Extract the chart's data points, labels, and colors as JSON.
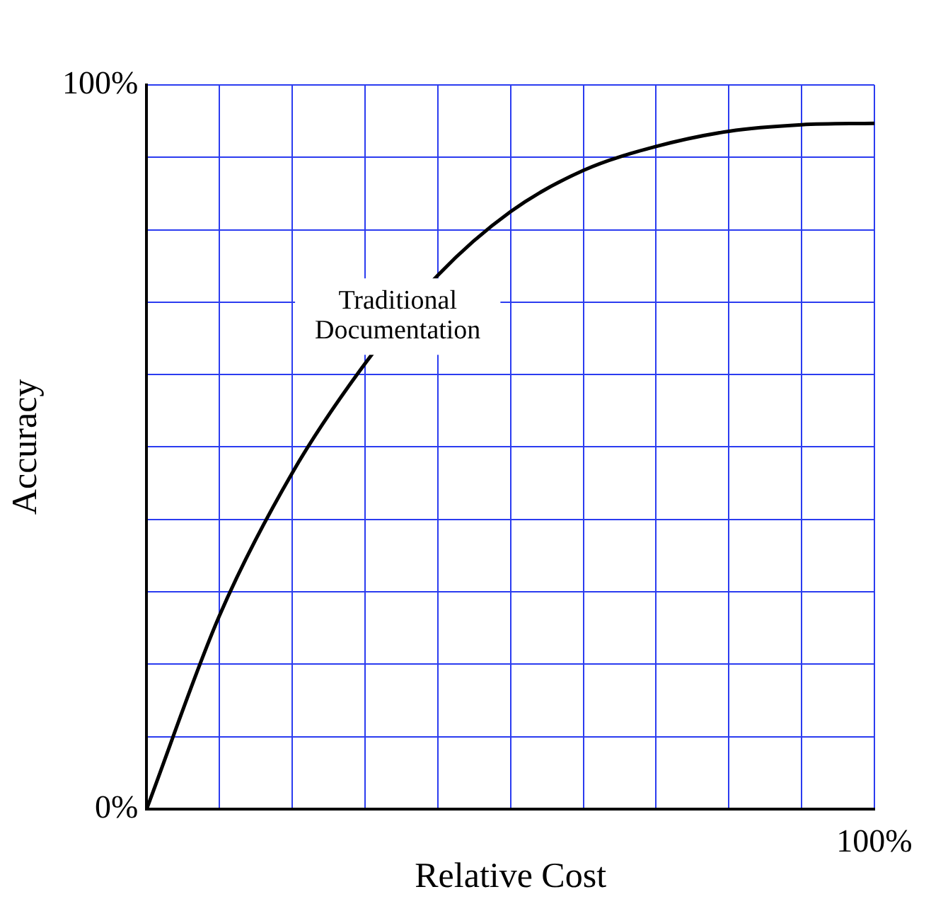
{
  "chart_data": {
    "type": "line",
    "xlabel": "Relative Cost",
    "ylabel": "Accuracy",
    "categories": [
      null,
      null,
      null,
      null,
      null,
      null,
      null,
      null,
      null,
      null,
      null
    ],
    "series": [
      {
        "color": "#000000",
        "values": [
          0,
          26.7,
          46.4,
          61.5,
          73.7,
          82.5,
          88.2,
          91.5,
          93.6,
          94.5,
          94.7
        ]
      }
    ],
    "ylim": [
      0,
      100
    ],
    "yticks": [
      {
        "value": 0,
        "label": "0%"
      },
      {
        "value": 10,
        "label": null
      },
      {
        "value": 20,
        "label": null
      },
      {
        "value": 30,
        "label": null
      },
      {
        "value": 40,
        "label": null
      },
      {
        "value": 50,
        "label": null
      },
      {
        "value": 60,
        "label": null
      },
      {
        "value": 70,
        "label": null
      },
      {
        "value": 80,
        "label": null
      },
      {
        "value": 90,
        "label": null
      },
      {
        "value": 100,
        "label": "100%"
      }
    ],
    "grid": true,
    "marker": "none",
    "line_style": "solid",
    "annotations": [
      "Traditional Documentation",
      "100%"
    ]
  }
}
